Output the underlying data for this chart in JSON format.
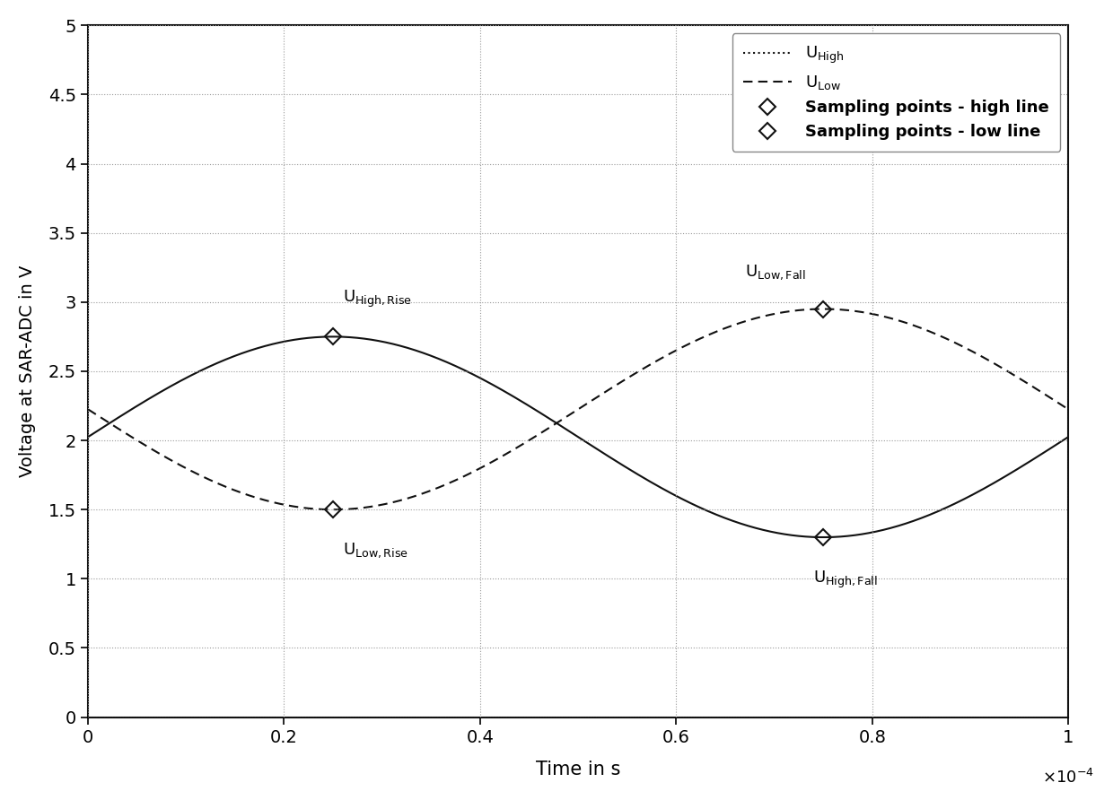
{
  "xlabel": "Time in s",
  "ylabel": "Voltage at SAR-ADC in V",
  "xlim": [
    0,
    0.0001
  ],
  "ylim": [
    0,
    5
  ],
  "yticks": [
    0,
    0.5,
    1.0,
    1.5,
    2.0,
    2.5,
    3.0,
    3.5,
    4.0,
    4.5,
    5.0
  ],
  "dc_high": 2.025,
  "dc_low": 2.225,
  "amplitude": 0.725,
  "freq": 10000,
  "background_color": "#ffffff",
  "line_color": "#111111",
  "grid_color": "#999999",
  "sampling_high_rise_t": 2.5e-05,
  "sampling_high_fall_t": 7.5e-05,
  "sampling_low_rise_t": 2.5e-05,
  "sampling_low_fall_t": 7.5e-05,
  "ann_hr_text": "U",
  "ann_hr_sub": "High,Rise",
  "ann_lr_text": "U",
  "ann_lr_sub": "Low,Rise",
  "ann_hf_text": "U",
  "ann_hf_sub": "High,Fall",
  "ann_lf_text": "U",
  "ann_lf_sub": "Low,Fall",
  "legend_high_text": "U",
  "legend_high_sub": "High",
  "legend_low_text": "U",
  "legend_low_sub": "Low",
  "legend_sp_high": "Sampling points - high line",
  "legend_sp_low": "Sampling points - low line",
  "figwidth": 12.4,
  "figheight": 8.92,
  "dpi": 100
}
